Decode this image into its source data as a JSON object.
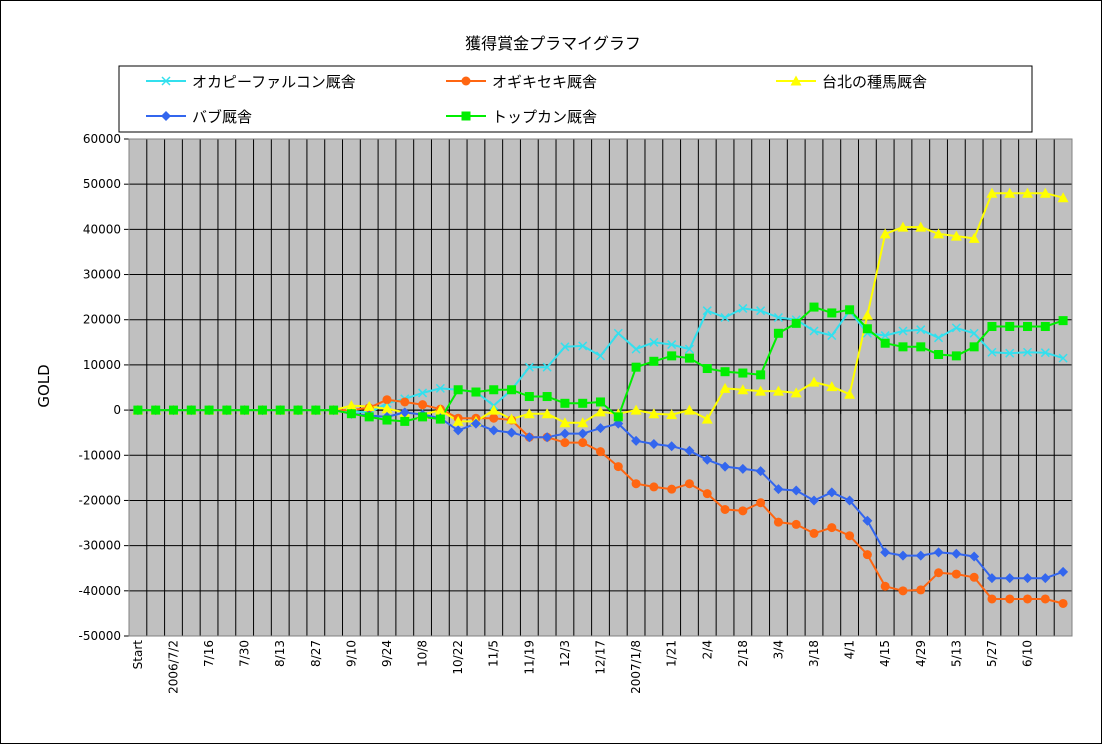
{
  "chart_data": {
    "type": "line",
    "title": "獲得賞金プラマイグラフ",
    "xlabel": "",
    "ylabel": "GOLD",
    "ylim": [
      -50000,
      60000
    ],
    "yticks": [
      60000,
      50000,
      40000,
      30000,
      20000,
      10000,
      0,
      -10000,
      -20000,
      -30000,
      -40000,
      -50000
    ],
    "grid": true,
    "legend_position": "top",
    "point_count": 53,
    "x_tick_labels": [
      {
        "index": 0,
        "label": "Start"
      },
      {
        "index": 2,
        "label": "2006/7/2"
      },
      {
        "index": 4,
        "label": "7/16"
      },
      {
        "index": 6,
        "label": "7/30"
      },
      {
        "index": 8,
        "label": "8/13"
      },
      {
        "index": 10,
        "label": "8/27"
      },
      {
        "index": 12,
        "label": "9/10"
      },
      {
        "index": 14,
        "label": "9/24"
      },
      {
        "index": 16,
        "label": "10/8"
      },
      {
        "index": 18,
        "label": "10/22"
      },
      {
        "index": 20,
        "label": "11/5"
      },
      {
        "index": 22,
        "label": "11/19"
      },
      {
        "index": 24,
        "label": "12/3"
      },
      {
        "index": 26,
        "label": "12/17"
      },
      {
        "index": 28,
        "label": "2007/1/8"
      },
      {
        "index": 30,
        "label": "1/21"
      },
      {
        "index": 32,
        "label": "2/4"
      },
      {
        "index": 34,
        "label": "2/18"
      },
      {
        "index": 36,
        "label": "3/4"
      },
      {
        "index": 38,
        "label": "3/18"
      },
      {
        "index": 40,
        "label": "4/1"
      },
      {
        "index": 42,
        "label": "4/15"
      },
      {
        "index": 44,
        "label": "4/29"
      },
      {
        "index": 46,
        "label": "5/13"
      },
      {
        "index": 48,
        "label": "5/27"
      },
      {
        "index": 50,
        "label": "6/10"
      }
    ],
    "series": [
      {
        "name": "オカピーファルコン厩舎",
        "color": "#33e0ee",
        "marker": "x",
        "values": [
          0,
          0,
          0,
          0,
          0,
          0,
          0,
          0,
          0,
          0,
          0,
          0,
          -200,
          -600,
          1500,
          2500,
          3800,
          4800,
          4500,
          4000,
          1000,
          4500,
          9500,
          9500,
          14000,
          14200,
          12000,
          17000,
          13500,
          15000,
          14500,
          13500,
          22000,
          20500,
          22500,
          22000,
          20500,
          20000,
          17500,
          16500,
          22000,
          17000,
          16500,
          17500,
          17800,
          16000,
          18200,
          17000,
          12800,
          12600,
          12800,
          12700,
          11500
        ]
      },
      {
        "name": "オギキセキ厩舎",
        "color": "#ff6611",
        "marker": "circle",
        "values": [
          0,
          0,
          0,
          0,
          0,
          0,
          0,
          0,
          0,
          0,
          0,
          0,
          0,
          500,
          2300,
          1800,
          1200,
          200,
          -1800,
          -1800,
          -1800,
          -2200,
          -6000,
          -6000,
          -7200,
          -7200,
          -9200,
          -12500,
          -16300,
          -17000,
          -17500,
          -16300,
          -18500,
          -22000,
          -22300,
          -20500,
          -24800,
          -25300,
          -27300,
          -26000,
          -27800,
          -32000,
          -39000,
          -40000,
          -39800,
          -36000,
          -36300,
          -37000,
          -41800,
          -41800,
          -41800,
          -41800,
          -42800
        ]
      },
      {
        "name": "台北の種馬厩舎",
        "color": "#ffff00",
        "marker": "triangle",
        "values": [
          0,
          0,
          0,
          0,
          0,
          0,
          0,
          0,
          0,
          0,
          0,
          0,
          1000,
          800,
          300,
          -500,
          -1000,
          0,
          -2500,
          -2500,
          0,
          -2000,
          -800,
          -800,
          -2800,
          -2800,
          -400,
          -800,
          0,
          -800,
          -1000,
          0,
          -2000,
          4800,
          4500,
          4200,
          4200,
          3800,
          6200,
          5200,
          3500,
          21000,
          39000,
          40500,
          40500,
          39000,
          38500,
          38000,
          48000,
          48000,
          48000,
          48000,
          47000
        ]
      },
      {
        "name": "バブ厩舎",
        "color": "#3366ee",
        "marker": "diamond",
        "values": [
          0,
          0,
          0,
          0,
          0,
          0,
          0,
          0,
          0,
          0,
          0,
          0,
          -800,
          -1200,
          -1500,
          -500,
          -1000,
          -1800,
          -4500,
          -3000,
          -4500,
          -5000,
          -6000,
          -6000,
          -5200,
          -5200,
          -4000,
          -3000,
          -6800,
          -7500,
          -8000,
          -9000,
          -11000,
          -12500,
          -13000,
          -13500,
          -17500,
          -17800,
          -20000,
          -18200,
          -20000,
          -24500,
          -31500,
          -32200,
          -32200,
          -31500,
          -31800,
          -32400,
          -37200,
          -37200,
          -37200,
          -37200,
          -35800
        ]
      },
      {
        "name": "トップカン厩舎",
        "color": "#00ee00",
        "marker": "square",
        "values": [
          0,
          0,
          0,
          0,
          0,
          0,
          0,
          0,
          0,
          0,
          0,
          0,
          -800,
          -1500,
          -2200,
          -2500,
          -1500,
          -2000,
          4500,
          4000,
          4500,
          4500,
          3000,
          3000,
          1500,
          1500,
          1800,
          -1500,
          9500,
          10800,
          12000,
          11500,
          9200,
          8500,
          8200,
          7800,
          17000,
          19200,
          22800,
          21500,
          22200,
          18000,
          14800,
          14000,
          14000,
          12300,
          12000,
          14000,
          18500,
          18500,
          18500,
          18500,
          19800
        ]
      }
    ]
  }
}
